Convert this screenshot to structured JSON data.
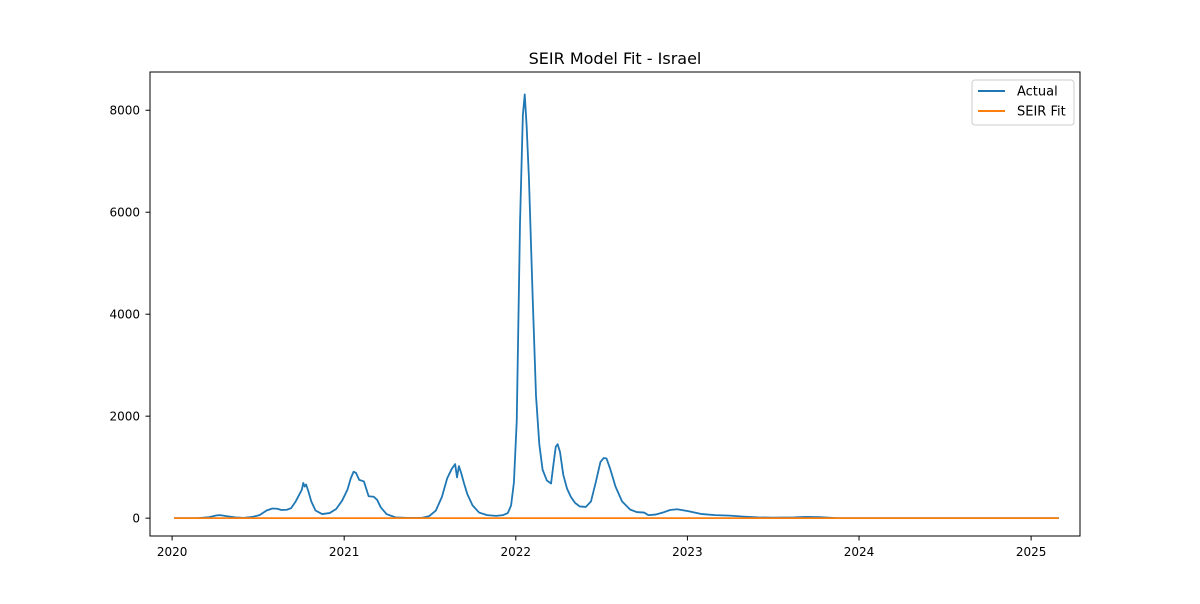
{
  "chart_data": {
    "type": "line",
    "title": "SEIR Model Fit - Israel",
    "xlabel": "",
    "ylabel": "",
    "xlim": [
      "2019-11-15",
      "2025-04-15"
    ],
    "ylim": [
      -350,
      8750
    ],
    "x_ticks": [
      "2020",
      "2021",
      "2022",
      "2023",
      "2024",
      "2025"
    ],
    "y_ticks": [
      "0",
      "2000",
      "4000",
      "6000",
      "8000"
    ],
    "grid": false,
    "legend_position": "top-right",
    "series": [
      {
        "name": "Actual",
        "color": "#1f77b4",
        "points": [
          [
            "2020-01-05",
            0
          ],
          [
            "2020-02-25",
            0
          ],
          [
            "2020-03-20",
            20
          ],
          [
            "2020-04-05",
            55
          ],
          [
            "2020-04-12",
            60
          ],
          [
            "2020-04-25",
            40
          ],
          [
            "2020-05-15",
            15
          ],
          [
            "2020-06-01",
            5
          ],
          [
            "2020-06-20",
            25
          ],
          [
            "2020-07-05",
            60
          ],
          [
            "2020-07-20",
            150
          ],
          [
            "2020-08-01",
            190
          ],
          [
            "2020-08-12",
            185
          ],
          [
            "2020-08-20",
            160
          ],
          [
            "2020-09-01",
            165
          ],
          [
            "2020-09-10",
            195
          ],
          [
            "2020-09-20",
            330
          ],
          [
            "2020-09-28",
            470
          ],
          [
            "2020-10-03",
            560
          ],
          [
            "2020-10-06",
            690
          ],
          [
            "2020-10-09",
            620
          ],
          [
            "2020-10-12",
            660
          ],
          [
            "2020-10-17",
            520
          ],
          [
            "2020-10-23",
            330
          ],
          [
            "2020-11-01",
            150
          ],
          [
            "2020-11-15",
            80
          ],
          [
            "2020-12-01",
            100
          ],
          [
            "2020-12-15",
            180
          ],
          [
            "2020-12-28",
            350
          ],
          [
            "2021-01-08",
            560
          ],
          [
            "2021-01-15",
            780
          ],
          [
            "2021-01-21",
            910
          ],
          [
            "2021-01-26",
            890
          ],
          [
            "2021-02-02",
            750
          ],
          [
            "2021-02-12",
            720
          ],
          [
            "2021-02-22",
            430
          ],
          [
            "2021-03-05",
            420
          ],
          [
            "2021-03-12",
            360
          ],
          [
            "2021-03-20",
            210
          ],
          [
            "2021-04-01",
            80
          ],
          [
            "2021-04-20",
            15
          ],
          [
            "2021-05-15",
            5
          ],
          [
            "2021-06-15",
            5
          ],
          [
            "2021-07-01",
            40
          ],
          [
            "2021-07-15",
            150
          ],
          [
            "2021-07-28",
            420
          ],
          [
            "2021-08-08",
            780
          ],
          [
            "2021-08-18",
            970
          ],
          [
            "2021-08-25",
            1060
          ],
          [
            "2021-08-29",
            800
          ],
          [
            "2021-09-02",
            1020
          ],
          [
            "2021-09-07",
            880
          ],
          [
            "2021-09-13",
            680
          ],
          [
            "2021-09-20",
            470
          ],
          [
            "2021-10-01",
            250
          ],
          [
            "2021-10-15",
            110
          ],
          [
            "2021-11-01",
            60
          ],
          [
            "2021-11-20",
            45
          ],
          [
            "2021-12-05",
            60
          ],
          [
            "2021-12-15",
            100
          ],
          [
            "2021-12-22",
            250
          ],
          [
            "2021-12-28",
            700
          ],
          [
            "2022-01-03",
            1900
          ],
          [
            "2022-01-10",
            5800
          ],
          [
            "2022-01-16",
            7900
          ],
          [
            "2022-01-20",
            8310
          ],
          [
            "2022-01-24",
            7700
          ],
          [
            "2022-01-29",
            6650
          ],
          [
            "2022-02-06",
            4300
          ],
          [
            "2022-02-13",
            2400
          ],
          [
            "2022-02-20",
            1450
          ],
          [
            "2022-02-27",
            950
          ],
          [
            "2022-03-08",
            740
          ],
          [
            "2022-03-17",
            680
          ],
          [
            "2022-03-22",
            1050
          ],
          [
            "2022-03-27",
            1400
          ],
          [
            "2022-03-31",
            1450
          ],
          [
            "2022-04-05",
            1300
          ],
          [
            "2022-04-12",
            850
          ],
          [
            "2022-04-20",
            580
          ],
          [
            "2022-04-28",
            420
          ],
          [
            "2022-05-07",
            300
          ],
          [
            "2022-05-17",
            230
          ],
          [
            "2022-05-30",
            220
          ],
          [
            "2022-06-10",
            330
          ],
          [
            "2022-06-20",
            700
          ],
          [
            "2022-06-30",
            1100
          ],
          [
            "2022-07-07",
            1180
          ],
          [
            "2022-07-13",
            1170
          ],
          [
            "2022-07-21",
            960
          ],
          [
            "2022-08-01",
            620
          ],
          [
            "2022-08-15",
            330
          ],
          [
            "2022-09-01",
            170
          ],
          [
            "2022-09-15",
            120
          ],
          [
            "2022-10-01",
            110
          ],
          [
            "2022-10-10",
            60
          ],
          [
            "2022-10-25",
            70
          ],
          [
            "2022-11-10",
            110
          ],
          [
            "2022-11-25",
            160
          ],
          [
            "2022-12-10",
            175
          ],
          [
            "2023-01-01",
            140
          ],
          [
            "2023-02-01",
            80
          ],
          [
            "2023-03-01",
            60
          ],
          [
            "2023-04-01",
            50
          ],
          [
            "2023-05-01",
            30
          ],
          [
            "2023-06-01",
            15
          ],
          [
            "2023-07-01",
            10
          ],
          [
            "2023-08-15",
            15
          ],
          [
            "2023-09-10",
            25
          ],
          [
            "2023-10-10",
            20
          ],
          [
            "2023-11-15",
            0
          ],
          [
            "2024-06-01",
            0
          ],
          [
            "2025-03-01",
            0
          ]
        ]
      },
      {
        "name": "SEIR Fit",
        "color": "#ff7f0e",
        "points": [
          [
            "2020-01-05",
            0
          ],
          [
            "2025-03-01",
            0
          ]
        ]
      }
    ]
  }
}
